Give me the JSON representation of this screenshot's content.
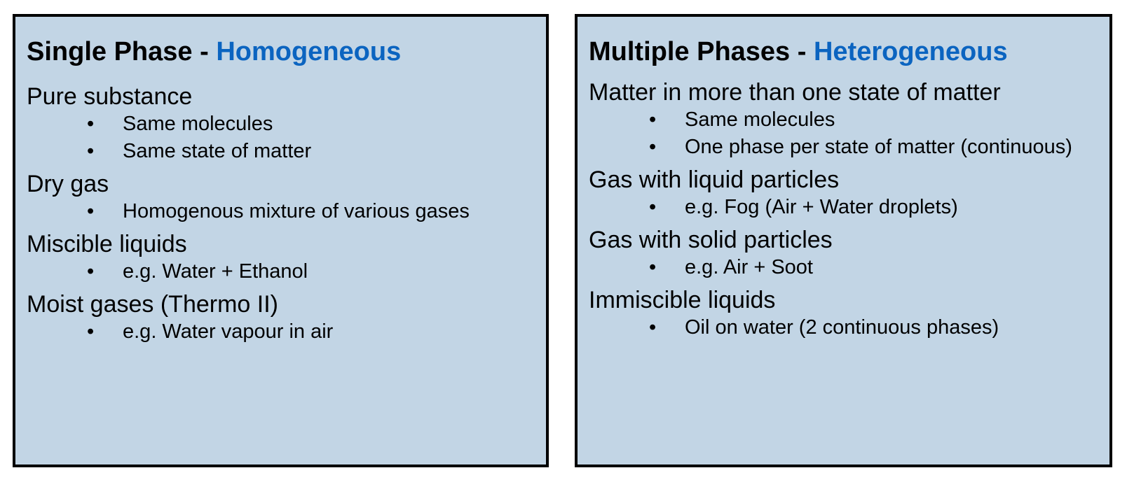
{
  "panels": {
    "left": {
      "title_prefix": "Single Phase - ",
      "title_accent": "Homogeneous",
      "sections": [
        {
          "heading": "Pure substance",
          "bullets": [
            "Same molecules",
            "Same state of matter"
          ]
        },
        {
          "heading": "Dry gas",
          "bullets": [
            "Homogenous mixture of various gases"
          ]
        },
        {
          "heading": "Miscible liquids",
          "bullets": [
            "e.g. Water + Ethanol"
          ]
        },
        {
          "heading": "Moist gases (Thermo II)",
          "bullets": [
            "e.g. Water vapour in air"
          ]
        }
      ]
    },
    "right": {
      "title_prefix": "Multiple Phases - ",
      "title_accent": "Heterogeneous",
      "sections": [
        {
          "heading": "Matter in more than one state of matter",
          "bullets": [
            "Same molecules",
            "One phase per state of matter (continuous)"
          ]
        },
        {
          "heading": "Gas with liquid particles",
          "bullets": [
            "e.g. Fog (Air + Water droplets)"
          ]
        },
        {
          "heading": "Gas with solid particles",
          "bullets": [
            "e.g. Air + Soot"
          ]
        },
        {
          "heading": "Immiscible liquids",
          "bullets": [
            "Oil on water (2 continuous phases)"
          ]
        }
      ]
    }
  },
  "bullet_symbol": "•",
  "colors": {
    "panel_background": "#c2d5e5",
    "panel_border": "#000000",
    "title_accent": "#0b64c0",
    "text": "#000000"
  }
}
